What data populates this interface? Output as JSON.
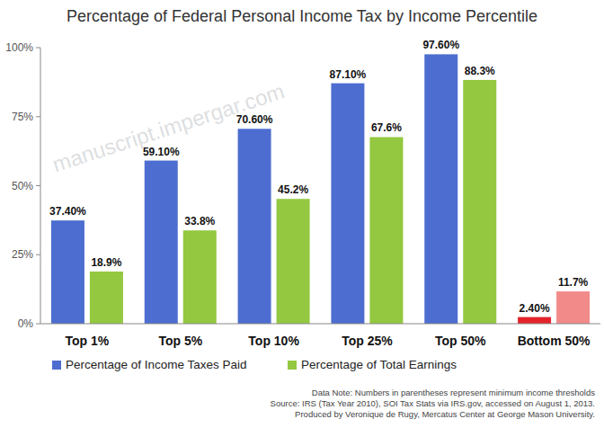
{
  "chart_data": {
    "type": "bar",
    "title": "Percentage of Federal Personal Income Tax by Income Percentile",
    "categories": [
      "Top 1%",
      "Top 5%",
      "Top 10%",
      "Top 25%",
      "Top 50%",
      "Bottom 50%"
    ],
    "series": [
      {
        "name": "Percentage of Income Taxes Paid",
        "color": "#4d6ed0",
        "colors": [
          "#4d6ed0",
          "#4d6ed0",
          "#4d6ed0",
          "#4d6ed0",
          "#4d6ed0",
          "#e3242b"
        ],
        "values": [
          37.4,
          59.1,
          70.6,
          87.1,
          97.6,
          2.4
        ],
        "value_labels": [
          "37.40%",
          "59.10%",
          "70.60%",
          "87.10%",
          "97.60%",
          "2.40%"
        ]
      },
      {
        "name": "Percentage of Total Earnings",
        "color": "#93c840",
        "colors": [
          "#93c840",
          "#93c840",
          "#93c840",
          "#93c840",
          "#93c840",
          "#f28a8a"
        ],
        "values": [
          18.9,
          33.8,
          45.2,
          67.6,
          88.3,
          11.7
        ],
        "value_labels": [
          "18.9%",
          "33.8%",
          "45.2%",
          "67.6%",
          "88.3%",
          "11.7%"
        ]
      }
    ],
    "ylim": [
      0,
      100
    ],
    "yticks": [
      {
        "value": 0,
        "label": "0%"
      },
      {
        "value": 25,
        "label": "25%"
      },
      {
        "value": 50,
        "label": "50%"
      },
      {
        "value": 75,
        "label": "75%"
      },
      {
        "value": 100,
        "label": "100%"
      }
    ],
    "grid": false,
    "legend": "bottom",
    "data_labels": true,
    "annotations": [
      "Data Note: Numbers in parentheses represent minimum income thresholds",
      "Source: IRS (Tax Year 2010), SOI Tax Stats via IRS.gov, accessed on August 1, 2013.",
      "Produced by Veronique de Rugy, Mercatus Center at George Mason University."
    ],
    "watermark": "manuscript.impergar.com"
  }
}
